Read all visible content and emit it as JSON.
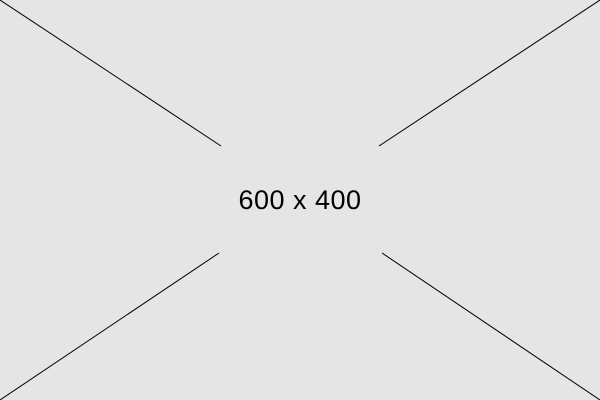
{
  "placeholder": {
    "label": "600 x 400",
    "background_color": "#e5e5e5",
    "line_color": "#000000",
    "text_color": "#000000"
  }
}
